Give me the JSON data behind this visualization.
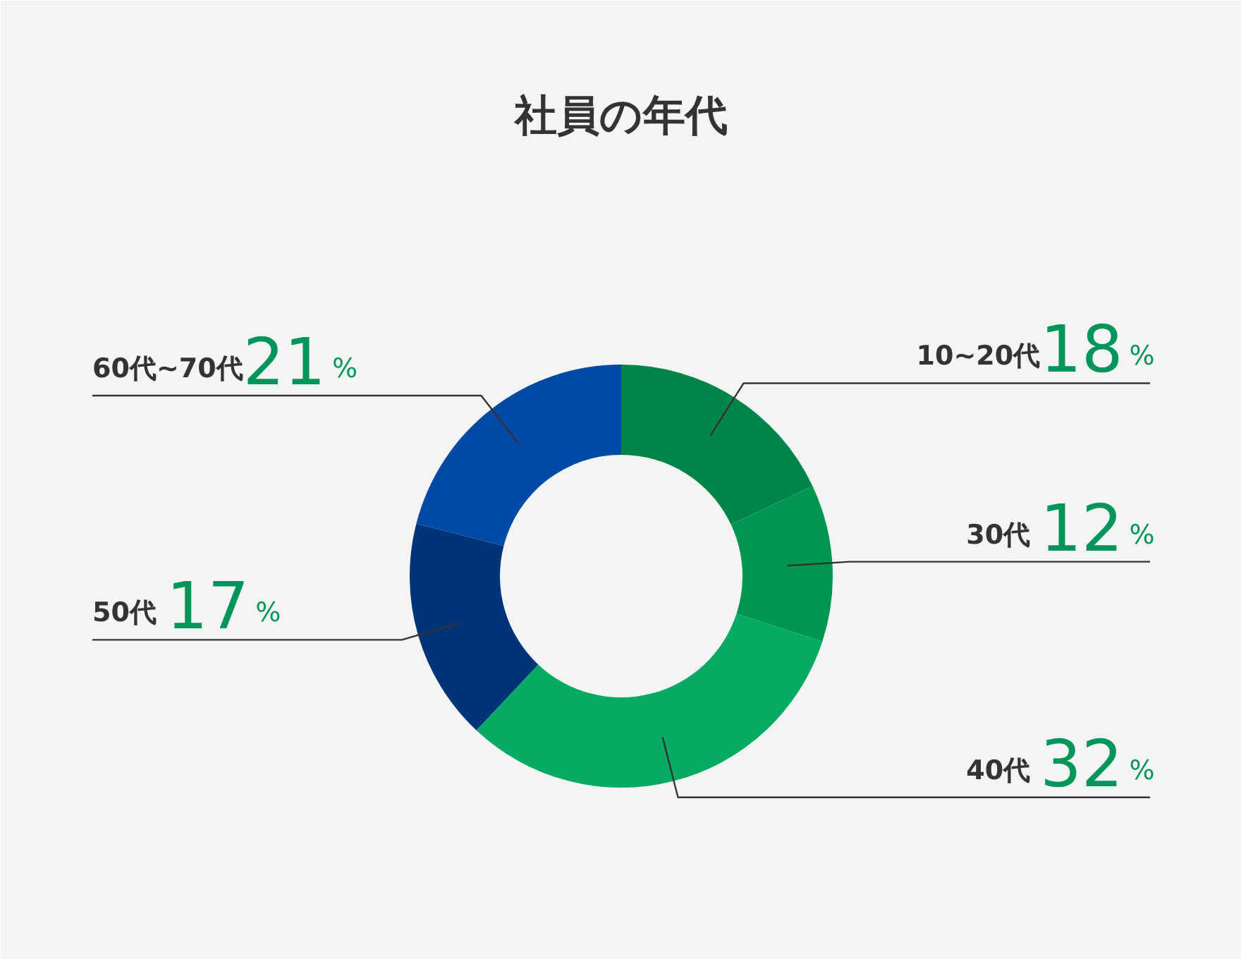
{
  "chart_data": {
    "type": "donut",
    "title": "社員の年代",
    "categories": [
      "10~20代",
      "30代",
      "40代",
      "50代",
      "60代~70代"
    ],
    "values": [
      18,
      12,
      32,
      17,
      21
    ],
    "colors": [
      "#00844a",
      "#00964f",
      "#05ab62",
      "#003478",
      "#004aa6"
    ],
    "value_labels": [
      "18%",
      "12%",
      "32%",
      "17%",
      "21%"
    ]
  }
}
